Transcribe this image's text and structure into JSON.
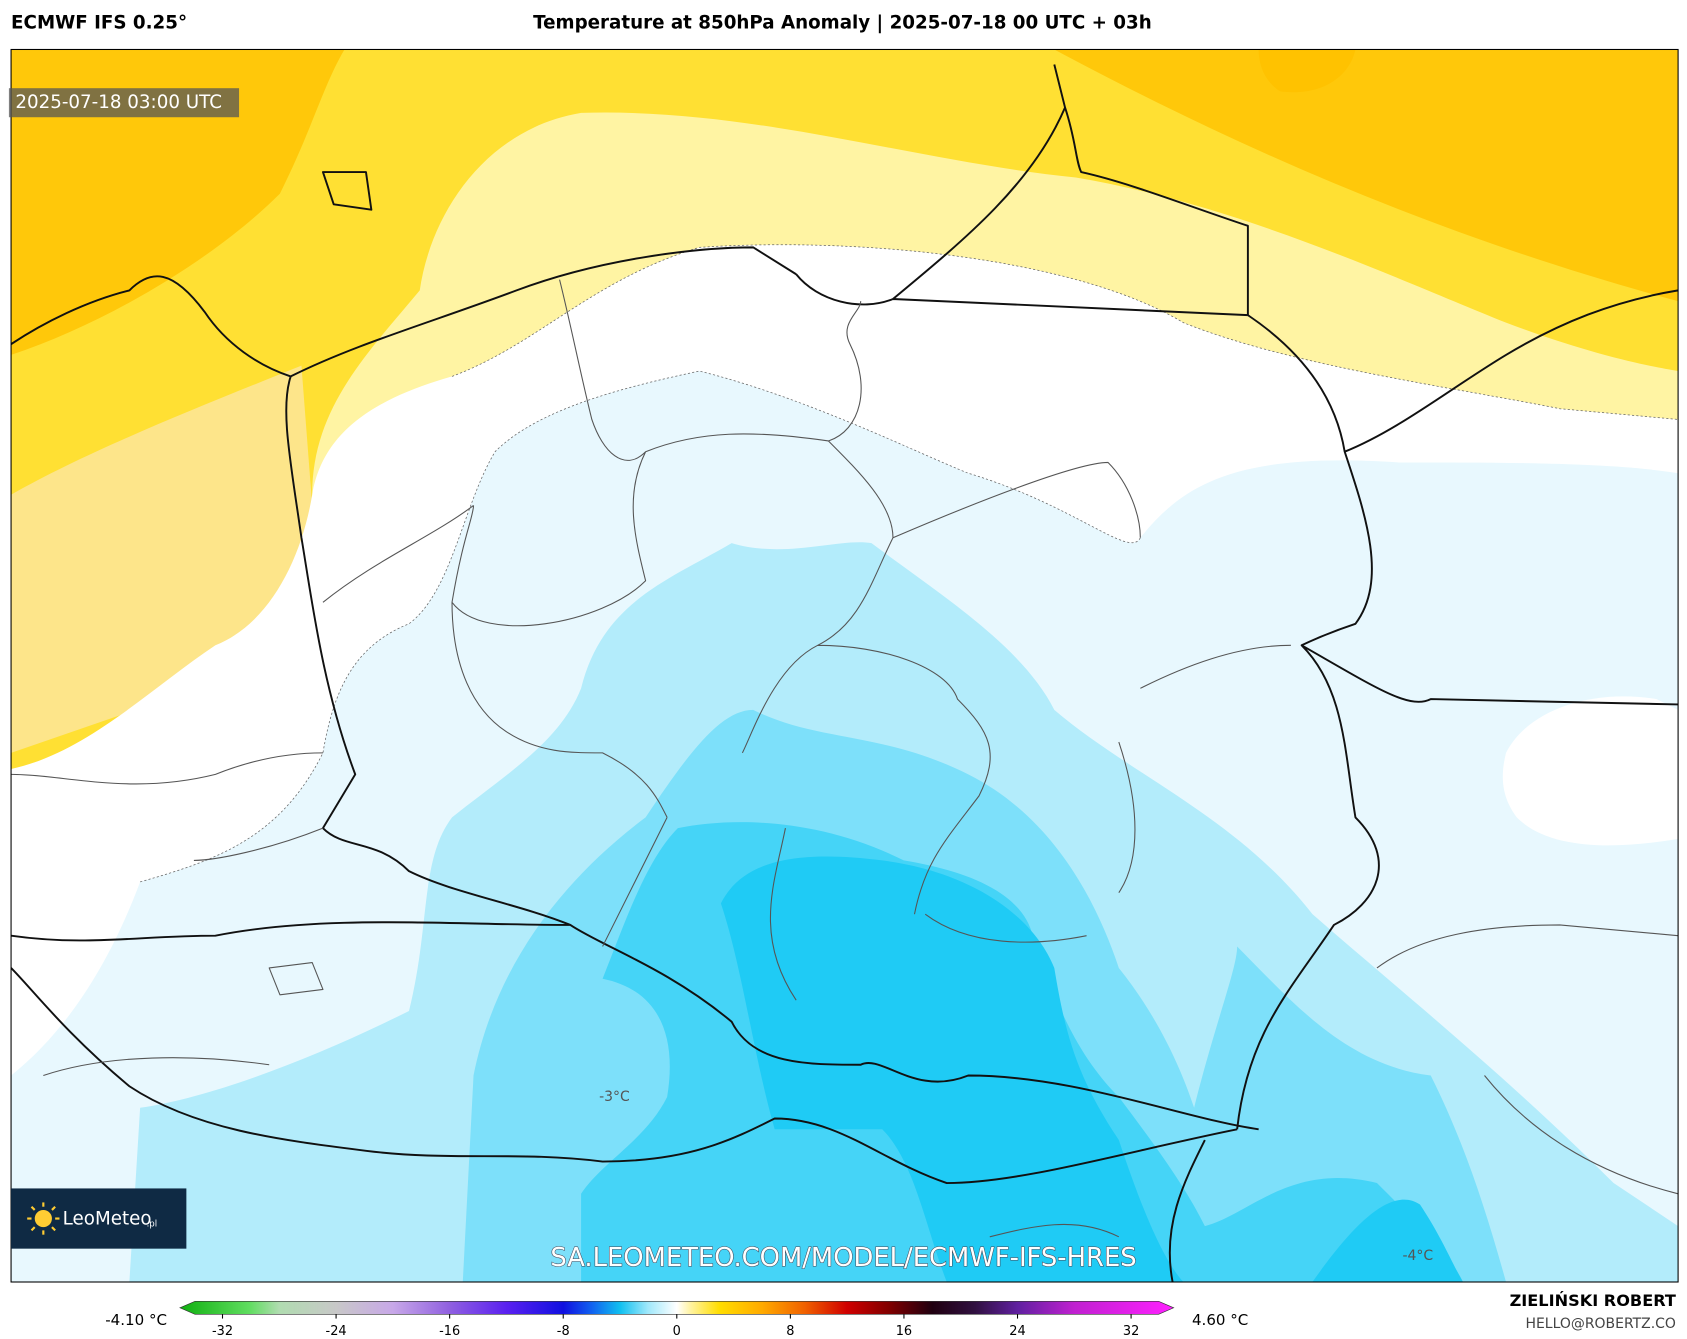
{
  "header": {
    "model": "ECMWF IFS 0.25°",
    "title": "Temperature at 850hPa Anomaly | 2025-07-18 00 UTC + 03h"
  },
  "map": {
    "valid_time": "2025-07-18 03:00 UTC",
    "contour_labels": [
      "-3°C",
      "-4°C"
    ],
    "watermark": "SA.LEOMETEO.COM/MODEL/ECMWF-IFS-HRES",
    "logo": "LeoMeteo",
    "logo_suffix": ".pl"
  },
  "colorbar": {
    "range": [
      -35,
      35
    ],
    "ticks": [
      -32,
      -24,
      -16,
      -8,
      0,
      8,
      16,
      24,
      32
    ],
    "min_label": "-4.10 °C",
    "max_label": "4.60 °C"
  },
  "footer": {
    "author": "ZIELIŃSKI ROBERT",
    "email": "HELLO@ROBERTZ.CO"
  }
}
